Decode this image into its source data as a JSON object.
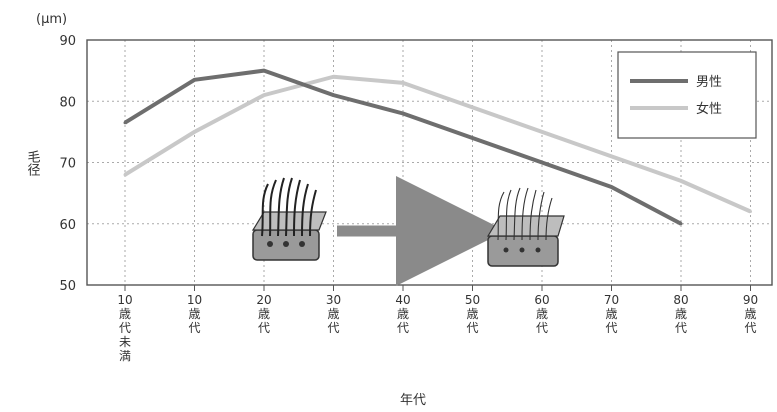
{
  "chart_data": {
    "type": "line",
    "unit_label": "(μm)",
    "ylabel": "毛径",
    "xlabel": "年代",
    "ylim": [
      50,
      90
    ],
    "yticks": [
      50,
      60,
      70,
      80,
      90
    ],
    "categories": [
      "10歳代未満",
      "10歳代",
      "20歳代",
      "30歳代",
      "40歳代",
      "50歳代",
      "60歳代",
      "70歳代",
      "80歳代",
      "90歳代"
    ],
    "series": [
      {
        "name": "男性",
        "color": "#6e6e6e",
        "values": [
          76.5,
          83.5,
          85,
          81,
          78,
          74,
          70,
          66,
          60,
          null
        ]
      },
      {
        "name": "女性",
        "color": "#c8c8c8",
        "values": [
          68,
          75,
          81,
          84,
          83,
          79,
          75,
          71,
          67,
          62
        ]
      }
    ],
    "grid": true,
    "legend_position": "top-right"
  }
}
